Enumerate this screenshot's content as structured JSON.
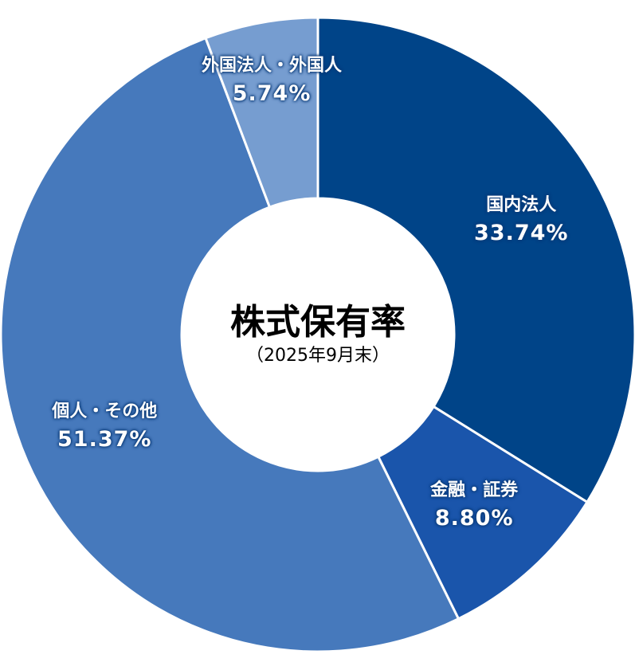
{
  "chart_data": {
    "type": "pie",
    "donut": true,
    "title": "株式保有率",
    "subtitle": "（2025年9月末）",
    "slices": [
      {
        "label": "国内法人",
        "value": 33.74,
        "display": "33.74%",
        "color": "#004488"
      },
      {
        "label": "金融・証券",
        "value": 8.8,
        "display": "8.80%",
        "color": "#1a55ab"
      },
      {
        "label": "個人・その他",
        "value": 51.37,
        "display": "51.37%",
        "color": "#4679bc"
      },
      {
        "label": "外国法人・外国人",
        "value": 5.74,
        "display": "5.74%",
        "color": "#769dd0"
      }
    ],
    "start": "top",
    "direction": "clockwise",
    "legend": "none"
  }
}
